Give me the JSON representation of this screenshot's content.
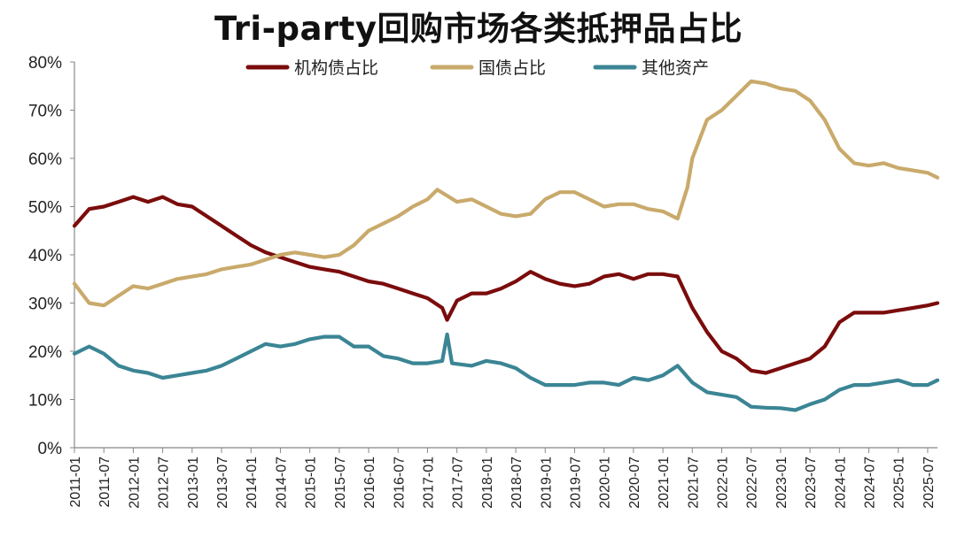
{
  "chart_data": {
    "type": "line",
    "title": "Tri-party回购市场各类抵押品占比",
    "xlabel": "",
    "ylabel": "",
    "ylim": [
      0,
      80
    ],
    "y_ticks": [
      "0%",
      "10%",
      "20%",
      "30%",
      "40%",
      "50%",
      "60%",
      "70%",
      "80%"
    ],
    "x_ticks": [
      "2011-01",
      "2011-07",
      "2012-01",
      "2012-07",
      "2013-01",
      "2013-07",
      "2014-01",
      "2014-07",
      "2015-01",
      "2015-07",
      "2016-01",
      "2016-07",
      "2017-01",
      "2017-07",
      "2018-01",
      "2018-07",
      "2019-01",
      "2019-07",
      "2020-01",
      "2020-07",
      "2021-01",
      "2021-07",
      "2022-01",
      "2022-07",
      "2023-01",
      "2023-07",
      "2024-01",
      "2024-07",
      "2025-01",
      "2025-07"
    ],
    "x_start": "2011-01",
    "x_end": "2025-09",
    "grid": false,
    "legend_position": "top",
    "series": [
      {
        "name": "机构债占比",
        "color": "#7b0c0c",
        "points": [
          [
            "2011-01",
            46
          ],
          [
            "2011-04",
            49.5
          ],
          [
            "2011-07",
            50
          ],
          [
            "2011-10",
            51
          ],
          [
            "2012-01",
            52
          ],
          [
            "2012-04",
            51
          ],
          [
            "2012-07",
            52
          ],
          [
            "2012-10",
            50.5
          ],
          [
            "2013-01",
            50
          ],
          [
            "2013-04",
            48
          ],
          [
            "2013-07",
            46
          ],
          [
            "2013-10",
            44
          ],
          [
            "2014-01",
            42
          ],
          [
            "2014-04",
            40.5
          ],
          [
            "2014-07",
            39.5
          ],
          [
            "2014-10",
            38.5
          ],
          [
            "2015-01",
            37.5
          ],
          [
            "2015-04",
            37
          ],
          [
            "2015-07",
            36.5
          ],
          [
            "2015-10",
            35.5
          ],
          [
            "2016-01",
            34.5
          ],
          [
            "2016-04",
            34
          ],
          [
            "2016-07",
            33
          ],
          [
            "2016-10",
            32
          ],
          [
            "2017-01",
            31
          ],
          [
            "2017-04",
            29
          ],
          [
            "2017-05",
            26.5
          ],
          [
            "2017-07",
            30.5
          ],
          [
            "2017-10",
            32
          ],
          [
            "2018-01",
            32
          ],
          [
            "2018-04",
            33
          ],
          [
            "2018-07",
            34.5
          ],
          [
            "2018-10",
            36.5
          ],
          [
            "2019-01",
            35
          ],
          [
            "2019-04",
            34
          ],
          [
            "2019-07",
            33.5
          ],
          [
            "2019-10",
            34
          ],
          [
            "2020-01",
            35.5
          ],
          [
            "2020-04",
            36
          ],
          [
            "2020-07",
            35
          ],
          [
            "2020-10",
            36
          ],
          [
            "2021-01",
            36
          ],
          [
            "2021-04",
            35.5
          ],
          [
            "2021-07",
            29
          ],
          [
            "2021-10",
            24
          ],
          [
            "2022-01",
            20
          ],
          [
            "2022-04",
            18.5
          ],
          [
            "2022-07",
            16
          ],
          [
            "2022-10",
            15.5
          ],
          [
            "2023-01",
            16.5
          ],
          [
            "2023-04",
            17.5
          ],
          [
            "2023-07",
            18.5
          ],
          [
            "2023-10",
            21
          ],
          [
            "2024-01",
            26
          ],
          [
            "2024-04",
            28
          ],
          [
            "2024-07",
            28
          ],
          [
            "2024-10",
            28
          ],
          [
            "2025-01",
            28.5
          ],
          [
            "2025-04",
            29
          ],
          [
            "2025-07",
            29.5
          ],
          [
            "2025-09",
            30
          ]
        ]
      },
      {
        "name": "国债占比",
        "color": "#c9aa6b",
        "points": [
          [
            "2011-01",
            34
          ],
          [
            "2011-04",
            30
          ],
          [
            "2011-07",
            29.5
          ],
          [
            "2011-10",
            31.5
          ],
          [
            "2012-01",
            33.5
          ],
          [
            "2012-04",
            33
          ],
          [
            "2012-07",
            34
          ],
          [
            "2012-10",
            35
          ],
          [
            "2013-01",
            35.5
          ],
          [
            "2013-04",
            36
          ],
          [
            "2013-07",
            37
          ],
          [
            "2013-10",
            37.5
          ],
          [
            "2014-01",
            38
          ],
          [
            "2014-04",
            39
          ],
          [
            "2014-07",
            40
          ],
          [
            "2014-10",
            40.5
          ],
          [
            "2015-01",
            40
          ],
          [
            "2015-04",
            39.5
          ],
          [
            "2015-07",
            40
          ],
          [
            "2015-10",
            42
          ],
          [
            "2016-01",
            45
          ],
          [
            "2016-04",
            46.5
          ],
          [
            "2016-07",
            48
          ],
          [
            "2016-10",
            50
          ],
          [
            "2017-01",
            51.5
          ],
          [
            "2017-03",
            53.5
          ],
          [
            "2017-07",
            51
          ],
          [
            "2017-10",
            51.5
          ],
          [
            "2018-01",
            50
          ],
          [
            "2018-04",
            48.5
          ],
          [
            "2018-07",
            48
          ],
          [
            "2018-10",
            48.5
          ],
          [
            "2019-01",
            51.5
          ],
          [
            "2019-04",
            53
          ],
          [
            "2019-07",
            53
          ],
          [
            "2019-10",
            51.5
          ],
          [
            "2020-01",
            50
          ],
          [
            "2020-04",
            50.5
          ],
          [
            "2020-07",
            50.5
          ],
          [
            "2020-10",
            49.5
          ],
          [
            "2021-01",
            49
          ],
          [
            "2021-04",
            47.5
          ],
          [
            "2021-06",
            54
          ],
          [
            "2021-07",
            60
          ],
          [
            "2021-10",
            68
          ],
          [
            "2022-01",
            70
          ],
          [
            "2022-04",
            73
          ],
          [
            "2022-07",
            76
          ],
          [
            "2022-10",
            75.5
          ],
          [
            "2023-01",
            74.5
          ],
          [
            "2023-04",
            74
          ],
          [
            "2023-07",
            72
          ],
          [
            "2023-10",
            68
          ],
          [
            "2024-01",
            62
          ],
          [
            "2024-04",
            59
          ],
          [
            "2024-07",
            58.5
          ],
          [
            "2024-10",
            59
          ],
          [
            "2025-01",
            58
          ],
          [
            "2025-04",
            57.5
          ],
          [
            "2025-07",
            57
          ],
          [
            "2025-09",
            56
          ]
        ]
      },
      {
        "name": "其他资产",
        "color": "#3b8595",
        "points": [
          [
            "2011-01",
            19.5
          ],
          [
            "2011-04",
            21
          ],
          [
            "2011-07",
            19.5
          ],
          [
            "2011-10",
            17
          ],
          [
            "2012-01",
            16
          ],
          [
            "2012-04",
            15.5
          ],
          [
            "2012-07",
            14.5
          ],
          [
            "2012-10",
            15
          ],
          [
            "2013-01",
            15.5
          ],
          [
            "2013-04",
            16
          ],
          [
            "2013-07",
            17
          ],
          [
            "2013-10",
            18.5
          ],
          [
            "2014-01",
            20
          ],
          [
            "2014-04",
            21.5
          ],
          [
            "2014-07",
            21
          ],
          [
            "2014-10",
            21.5
          ],
          [
            "2015-01",
            22.5
          ],
          [
            "2015-04",
            23
          ],
          [
            "2015-07",
            23
          ],
          [
            "2015-10",
            21
          ],
          [
            "2016-01",
            21
          ],
          [
            "2016-04",
            19
          ],
          [
            "2016-07",
            18.5
          ],
          [
            "2016-10",
            17.5
          ],
          [
            "2017-01",
            17.5
          ],
          [
            "2017-04",
            18
          ],
          [
            "2017-05",
            23.5
          ],
          [
            "2017-06",
            17.5
          ],
          [
            "2017-10",
            17
          ],
          [
            "2018-01",
            18
          ],
          [
            "2018-04",
            17.5
          ],
          [
            "2018-07",
            16.5
          ],
          [
            "2018-10",
            14.5
          ],
          [
            "2019-01",
            13
          ],
          [
            "2019-04",
            13
          ],
          [
            "2019-07",
            13
          ],
          [
            "2019-10",
            13.5
          ],
          [
            "2020-01",
            13.5
          ],
          [
            "2020-04",
            13
          ],
          [
            "2020-07",
            14.5
          ],
          [
            "2020-10",
            14
          ],
          [
            "2021-01",
            15
          ],
          [
            "2021-04",
            17
          ],
          [
            "2021-07",
            13.5
          ],
          [
            "2021-10",
            11.5
          ],
          [
            "2022-01",
            11
          ],
          [
            "2022-04",
            10.5
          ],
          [
            "2022-07",
            8.5
          ],
          [
            "2022-10",
            8.3
          ],
          [
            "2023-01",
            8.2
          ],
          [
            "2023-04",
            7.8
          ],
          [
            "2023-07",
            9
          ],
          [
            "2023-10",
            10
          ],
          [
            "2024-01",
            12
          ],
          [
            "2024-04",
            13
          ],
          [
            "2024-07",
            13
          ],
          [
            "2024-10",
            13.5
          ],
          [
            "2025-01",
            14
          ],
          [
            "2025-04",
            13
          ],
          [
            "2025-07",
            13
          ],
          [
            "2025-09",
            14
          ]
        ]
      }
    ]
  }
}
